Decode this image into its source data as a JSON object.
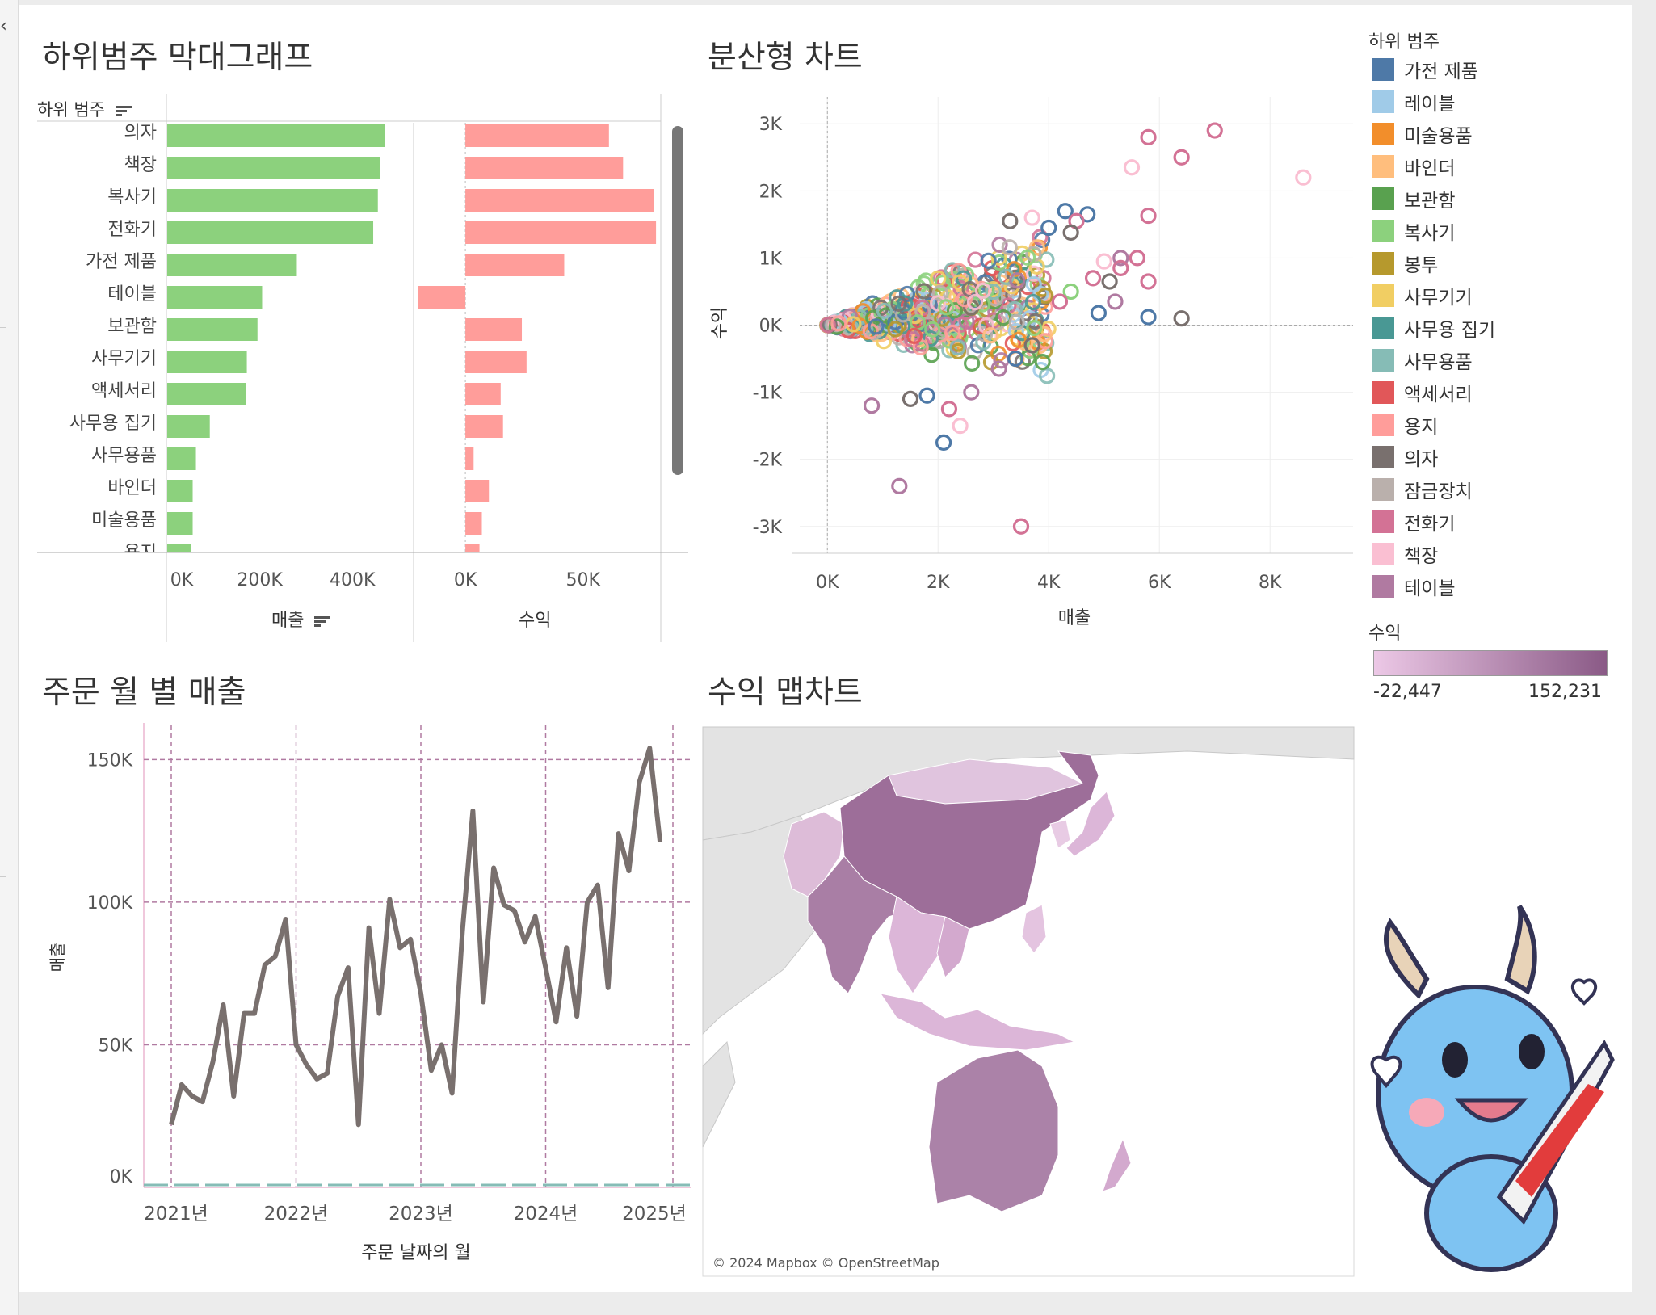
{
  "titles": {
    "bar": "하위범주 막대그래프",
    "scatter": "분산형 차트",
    "line": "주문 월 별 매출",
    "map": "수익 맵차트"
  },
  "bar_panel": {
    "header": "하위 범주",
    "measure_sales": "매출",
    "measure_profit": "수익"
  },
  "legend": {
    "title": "하위 범주",
    "items": [
      {
        "label": "가전 제품",
        "color": "#4e79a7"
      },
      {
        "label": "레이블",
        "color": "#a0cbe8"
      },
      {
        "label": "미술용품",
        "color": "#f28e2b"
      },
      {
        "label": "바인더",
        "color": "#ffbe7d"
      },
      {
        "label": "보관함",
        "color": "#59a14f"
      },
      {
        "label": "복사기",
        "color": "#8cd17d"
      },
      {
        "label": "봉투",
        "color": "#b6992d"
      },
      {
        "label": "사무기기",
        "color": "#f1ce63"
      },
      {
        "label": "사무용 집기",
        "color": "#499894"
      },
      {
        "label": "사무용품",
        "color": "#86bcb6"
      },
      {
        "label": "액세서리",
        "color": "#e15759"
      },
      {
        "label": "용지",
        "color": "#ff9d9a"
      },
      {
        "label": "의자",
        "color": "#79706e"
      },
      {
        "label": "잠금장치",
        "color": "#bab0ac"
      },
      {
        "label": "전화기",
        "color": "#d37295"
      },
      {
        "label": "책장",
        "color": "#fabfd2"
      },
      {
        "label": "테이블",
        "color": "#b07aa1"
      }
    ]
  },
  "profit_legend": {
    "title": "수익",
    "min": "-22,447",
    "max": "152,231",
    "color_low": "#ecc8e6",
    "color_high": "#8a5a86"
  },
  "map": {
    "attribution": "© 2024 Mapbox © OpenStreetMap"
  },
  "chart_data": [
    {
      "type": "bar",
      "name": "하위범주 막대그래프",
      "categories": [
        "의자",
        "책장",
        "복사기",
        "전화기",
        "가전 제품",
        "테이블",
        "보관함",
        "사무기기",
        "액세서리",
        "사무용 집기",
        "사무용품",
        "바인더",
        "미술용품",
        "용지"
      ],
      "series": [
        {
          "name": "매출",
          "values": [
            470000,
            460000,
            455000,
            445000,
            280000,
            205000,
            195000,
            172000,
            170000,
            92000,
            62000,
            55000,
            55000,
            52000
          ]
        },
        {
          "name": "수익",
          "values": [
            61000,
            67000,
            80000,
            81000,
            42000,
            -20000,
            24000,
            26000,
            15000,
            16000,
            3500,
            10000,
            7000,
            6000
          ]
        }
      ],
      "xlabel": "매출",
      "x_ticks_sales": [
        "0K",
        "200K",
        "400K"
      ],
      "x_ticks_profit": [
        "0K",
        "50K"
      ],
      "sales_range": [
        0,
        520000
      ],
      "profit_range": [
        -22000,
        82000
      ],
      "colors": {
        "매출": "#8cd17d",
        "수익": "#ff9d9a"
      }
    },
    {
      "type": "scatter",
      "name": "분산형 차트",
      "xlabel": "매출",
      "ylabel": "수익",
      "xlim": [
        -500,
        9500
      ],
      "ylim": [
        -3400,
        3400
      ],
      "x_ticks": [
        "0K",
        "2K",
        "4K",
        "6K",
        "8K"
      ],
      "y_ticks": [
        "3K",
        "2K",
        "1K",
        "0K",
        "-1K",
        "-2K",
        "-3K"
      ],
      "cluster_count": 620,
      "points": [
        {
          "x": 5800,
          "y": 2800,
          "c": "전화기"
        },
        {
          "x": 7000,
          "y": 2900,
          "c": "전화기"
        },
        {
          "x": 5500,
          "y": 2350,
          "c": "책장"
        },
        {
          "x": 6400,
          "y": 2500,
          "c": "전화기"
        },
        {
          "x": 8600,
          "y": 2200,
          "c": "책장"
        },
        {
          "x": 5800,
          "y": 1630,
          "c": "전화기"
        },
        {
          "x": 4300,
          "y": 1700,
          "c": "가전 제품"
        },
        {
          "x": 4700,
          "y": 1650,
          "c": "가전 제품"
        },
        {
          "x": 4500,
          "y": 1550,
          "c": "전화기"
        },
        {
          "x": 3700,
          "y": 1600,
          "c": "책장"
        },
        {
          "x": 3300,
          "y": 1550,
          "c": "의자"
        },
        {
          "x": 4400,
          "y": 1380,
          "c": "의자"
        },
        {
          "x": 4000,
          "y": 1450,
          "c": "가전 제품"
        },
        {
          "x": 5300,
          "y": 1000,
          "c": "테이블"
        },
        {
          "x": 5600,
          "y": 1000,
          "c": "전화기"
        },
        {
          "x": 5000,
          "y": 950,
          "c": "책장"
        },
        {
          "x": 5300,
          "y": 850,
          "c": "전화기"
        },
        {
          "x": 5100,
          "y": 650,
          "c": "의자"
        },
        {
          "x": 4800,
          "y": 700,
          "c": "전화기"
        },
        {
          "x": 5800,
          "y": 650,
          "c": "전화기"
        },
        {
          "x": 4400,
          "y": 500,
          "c": "복사기"
        },
        {
          "x": 4200,
          "y": 350,
          "c": "전화기"
        },
        {
          "x": 5200,
          "y": 350,
          "c": "테이블"
        },
        {
          "x": 4900,
          "y": 180,
          "c": "가전 제품"
        },
        {
          "x": 5800,
          "y": 120,
          "c": "가전 제품"
        },
        {
          "x": 6400,
          "y": 100,
          "c": "의자"
        },
        {
          "x": 3700,
          "y": -300,
          "c": "의자"
        },
        {
          "x": 3100,
          "y": -650,
          "c": "테이블"
        },
        {
          "x": 3400,
          "y": -500,
          "c": "가전 제품"
        },
        {
          "x": 2600,
          "y": -1000,
          "c": "테이블"
        },
        {
          "x": 2200,
          "y": -1250,
          "c": "전화기"
        },
        {
          "x": 1800,
          "y": -1050,
          "c": "가전 제품"
        },
        {
          "x": 1500,
          "y": -1100,
          "c": "의자"
        },
        {
          "x": 800,
          "y": -1200,
          "c": "테이블"
        },
        {
          "x": 2400,
          "y": -1500,
          "c": "책장"
        },
        {
          "x": 2100,
          "y": -1750,
          "c": "가전 제품"
        },
        {
          "x": 1300,
          "y": -2400,
          "c": "테이블"
        },
        {
          "x": 3500,
          "y": -3000,
          "c": "전화기"
        }
      ]
    },
    {
      "type": "line",
      "name": "주문 월 별 매출",
      "xlabel": "주문 날짜의 월",
      "ylabel": "매출",
      "ylim": [
        0,
        160000
      ],
      "y_ticks": [
        "0K",
        "50K",
        "100K",
        "150K"
      ],
      "x_ticks": [
        "2021년",
        "2022년",
        "2023년",
        "2024년",
        "2025년"
      ],
      "x": [
        "2021-01",
        "2021-02",
        "2021-03",
        "2021-04",
        "2021-05",
        "2021-06",
        "2021-07",
        "2021-08",
        "2021-09",
        "2021-10",
        "2021-11",
        "2021-12",
        "2022-01",
        "2022-02",
        "2022-03",
        "2022-04",
        "2022-05",
        "2022-06",
        "2022-07",
        "2022-08",
        "2022-09",
        "2022-10",
        "2022-11",
        "2022-12",
        "2023-01",
        "2023-02",
        "2023-03",
        "2023-04",
        "2023-05",
        "2023-06",
        "2023-07",
        "2023-08",
        "2023-09",
        "2023-10",
        "2023-11",
        "2023-12",
        "2024-01",
        "2024-02",
        "2024-03",
        "2024-04",
        "2024-05",
        "2024-06",
        "2024-07",
        "2024-08",
        "2024-09",
        "2024-10",
        "2024-11",
        "2024-12"
      ],
      "values": [
        22000,
        36000,
        32000,
        30000,
        44000,
        64000,
        32000,
        61000,
        61000,
        78000,
        81000,
        94000,
        50000,
        43000,
        38000,
        40000,
        67000,
        77000,
        22000,
        91000,
        61000,
        101000,
        84000,
        87000,
        68000,
        41000,
        50000,
        33000,
        90000,
        132000,
        65000,
        112000,
        99000,
        97000,
        86000,
        95000,
        77000,
        58000,
        84000,
        60000,
        100000,
        106000,
        70000,
        124000,
        111000,
        142000,
        154000,
        121000
      ]
    },
    {
      "type": "heatmap",
      "name": "수익 맵차트",
      "measure": "수익",
      "regions": [
        {
          "name": "중국",
          "level": 0.85
        },
        {
          "name": "인도",
          "level": 0.55
        },
        {
          "name": "호주",
          "level": 0.6
        },
        {
          "name": "몽골",
          "level": 0.2
        },
        {
          "name": "일본",
          "level": 0.3
        },
        {
          "name": "인도네시아",
          "level": 0.3
        },
        {
          "name": "파키스탄",
          "level": 0.2
        },
        {
          "name": "뉴질랜드",
          "level": 0.3
        },
        {
          "name": "필리핀",
          "level": 0.25
        },
        {
          "name": "베트남",
          "level": 0.3
        }
      ]
    }
  ]
}
